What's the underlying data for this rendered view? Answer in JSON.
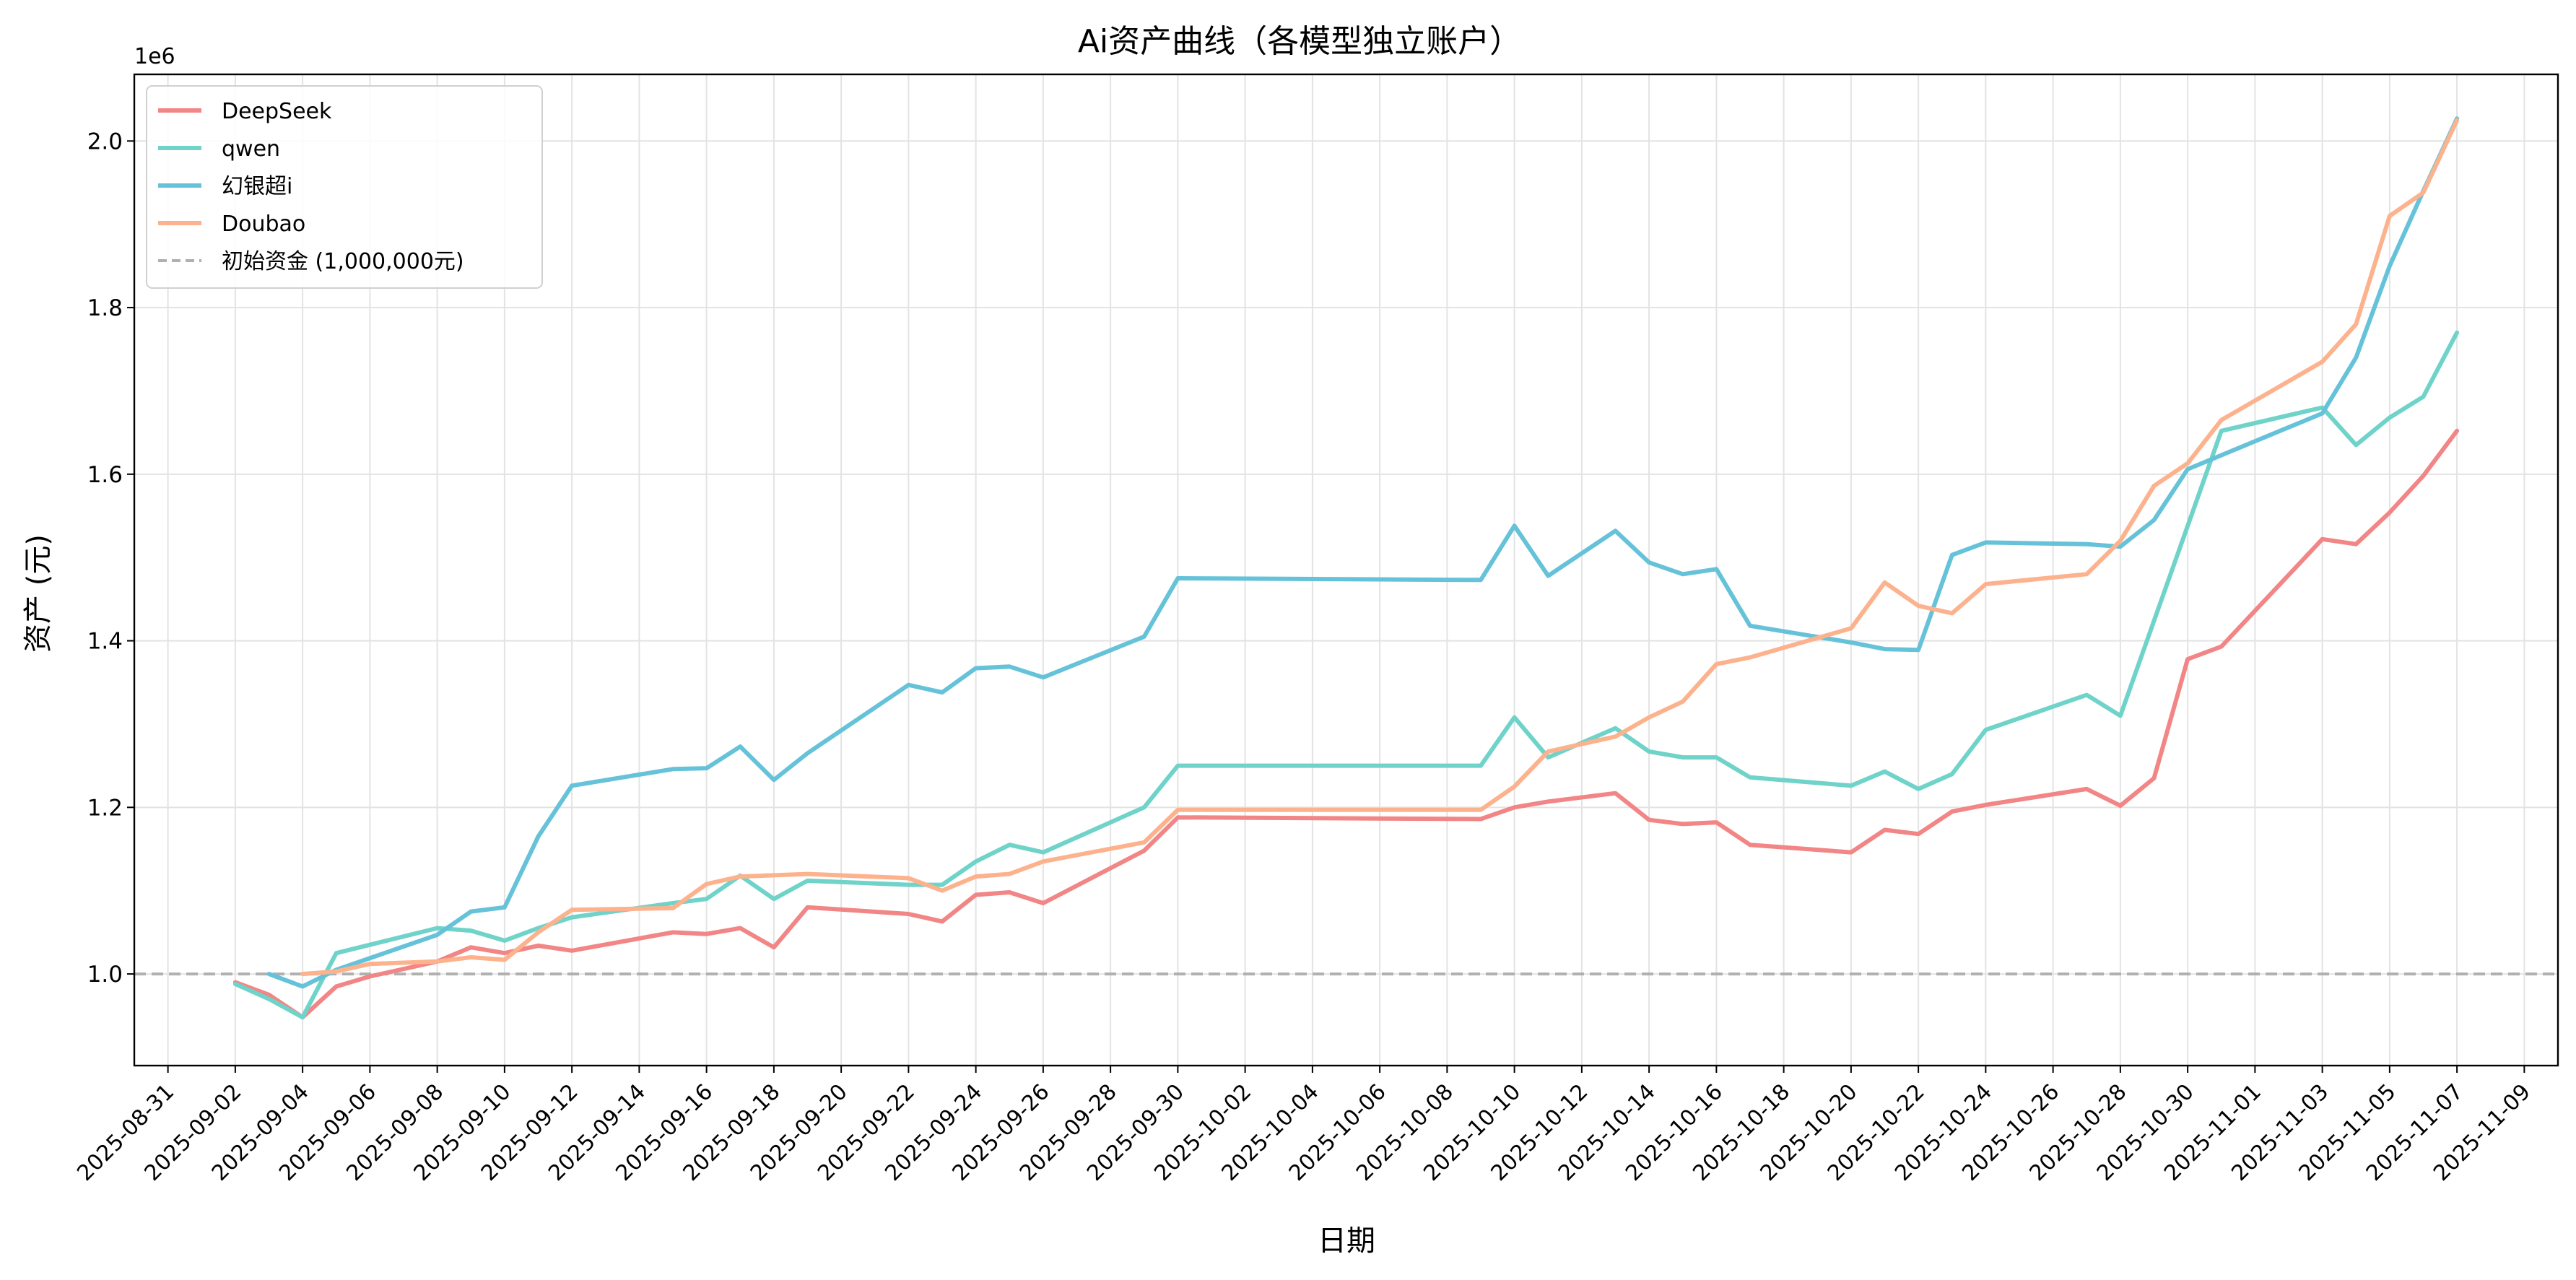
{
  "chart_data": {
    "type": "line",
    "title": "Ai资产曲线（各模型独立账户）",
    "xlabel": "日期",
    "ylabel": "资产 (元)",
    "y_offset_label": "1e6",
    "ylim": [
      0.89,
      2.08
    ],
    "yticks": [
      1.0,
      1.2,
      1.4,
      1.6,
      1.8,
      2.0
    ],
    "ytick_labels": [
      "1.0",
      "1.2",
      "1.4",
      "1.6",
      "1.8",
      "2.0"
    ],
    "xlim": [
      "2025-08-30",
      "2025-11-10"
    ],
    "xticks": [
      "2025-08-31",
      "2025-09-02",
      "2025-09-04",
      "2025-09-06",
      "2025-09-08",
      "2025-09-10",
      "2025-09-12",
      "2025-09-14",
      "2025-09-16",
      "2025-09-18",
      "2025-09-20",
      "2025-09-22",
      "2025-09-24",
      "2025-09-26",
      "2025-09-28",
      "2025-09-30",
      "2025-10-02",
      "2025-10-04",
      "2025-10-06",
      "2025-10-08",
      "2025-10-10",
      "2025-10-12",
      "2025-10-14",
      "2025-10-16",
      "2025-10-18",
      "2025-10-20",
      "2025-10-22",
      "2025-10-24",
      "2025-10-26",
      "2025-10-28",
      "2025-10-30",
      "2025-11-01",
      "2025-11-03",
      "2025-11-05",
      "2025-11-07",
      "2025-11-09"
    ],
    "grid": true,
    "legend_position": "upper-left",
    "reference_line": {
      "label": "初始资金 (1,000,000元)",
      "y": 1.0,
      "color": "#b0b0b0",
      "style": "dashed"
    },
    "series": [
      {
        "name": "DeepSeek",
        "color": "#f28585",
        "points": [
          [
            "2025-09-02",
            0.99
          ],
          [
            "2025-09-03",
            0.975
          ],
          [
            "2025-09-04",
            0.948
          ],
          [
            "2025-09-05",
            0.985
          ],
          [
            "2025-09-06",
            0.997
          ],
          [
            "2025-09-08",
            1.015
          ],
          [
            "2025-09-09",
            1.032
          ],
          [
            "2025-09-10",
            1.025
          ],
          [
            "2025-09-11",
            1.034
          ],
          [
            "2025-09-12",
            1.028
          ],
          [
            "2025-09-15",
            1.05
          ],
          [
            "2025-09-16",
            1.048
          ],
          [
            "2025-09-17",
            1.055
          ],
          [
            "2025-09-18",
            1.032
          ],
          [
            "2025-09-19",
            1.08
          ],
          [
            "2025-09-22",
            1.072
          ],
          [
            "2025-09-23",
            1.063
          ],
          [
            "2025-09-24",
            1.095
          ],
          [
            "2025-09-25",
            1.098
          ],
          [
            "2025-09-26",
            1.085
          ],
          [
            "2025-09-29",
            1.148
          ],
          [
            "2025-09-30",
            1.188
          ],
          [
            "2025-10-09",
            1.186
          ],
          [
            "2025-10-10",
            1.2
          ],
          [
            "2025-10-11",
            1.207
          ],
          [
            "2025-10-13",
            1.217
          ],
          [
            "2025-10-14",
            1.185
          ],
          [
            "2025-10-15",
            1.18
          ],
          [
            "2025-10-16",
            1.182
          ],
          [
            "2025-10-17",
            1.155
          ],
          [
            "2025-10-20",
            1.146
          ],
          [
            "2025-10-21",
            1.173
          ],
          [
            "2025-10-22",
            1.168
          ],
          [
            "2025-10-23",
            1.195
          ],
          [
            "2025-10-24",
            1.203
          ],
          [
            "2025-10-27",
            1.222
          ],
          [
            "2025-10-28",
            1.202
          ],
          [
            "2025-10-29",
            1.235
          ],
          [
            "2025-10-30",
            1.378
          ],
          [
            "2025-10-31",
            1.393
          ],
          [
            "2025-11-03",
            1.522
          ],
          [
            "2025-11-04",
            1.516
          ],
          [
            "2025-11-05",
            1.554
          ],
          [
            "2025-11-06",
            1.598
          ],
          [
            "2025-11-07",
            1.652
          ]
        ]
      },
      {
        "name": "qwen",
        "color": "#6fd3c9",
        "points": [
          [
            "2025-09-02",
            0.988
          ],
          [
            "2025-09-03",
            0.97
          ],
          [
            "2025-09-04",
            0.948
          ],
          [
            "2025-09-05",
            1.025
          ],
          [
            "2025-09-08",
            1.055
          ],
          [
            "2025-09-09",
            1.052
          ],
          [
            "2025-09-10",
            1.04
          ],
          [
            "2025-09-11",
            1.055
          ],
          [
            "2025-09-12",
            1.068
          ],
          [
            "2025-09-15",
            1.085
          ],
          [
            "2025-09-16",
            1.09
          ],
          [
            "2025-09-17",
            1.118
          ],
          [
            "2025-09-18",
            1.09
          ],
          [
            "2025-09-19",
            1.112
          ],
          [
            "2025-09-22",
            1.107
          ],
          [
            "2025-09-23",
            1.107
          ],
          [
            "2025-09-24",
            1.135
          ],
          [
            "2025-09-25",
            1.155
          ],
          [
            "2025-09-26",
            1.146
          ],
          [
            "2025-09-29",
            1.2
          ],
          [
            "2025-09-30",
            1.25
          ],
          [
            "2025-10-09",
            1.25
          ],
          [
            "2025-10-10",
            1.308
          ],
          [
            "2025-10-11",
            1.26
          ],
          [
            "2025-10-13",
            1.295
          ],
          [
            "2025-10-14",
            1.267
          ],
          [
            "2025-10-15",
            1.26
          ],
          [
            "2025-10-16",
            1.26
          ],
          [
            "2025-10-17",
            1.236
          ],
          [
            "2025-10-20",
            1.226
          ],
          [
            "2025-10-21",
            1.243
          ],
          [
            "2025-10-22",
            1.222
          ],
          [
            "2025-10-23",
            1.24
          ],
          [
            "2025-10-24",
            1.293
          ],
          [
            "2025-10-27",
            1.335
          ],
          [
            "2025-10-28",
            1.31
          ],
          [
            "2025-10-31",
            1.652
          ],
          [
            "2025-11-03",
            1.68
          ],
          [
            "2025-11-04",
            1.635
          ],
          [
            "2025-11-05",
            1.668
          ],
          [
            "2025-11-06",
            1.693
          ],
          [
            "2025-11-07",
            1.77
          ]
        ]
      },
      {
        "name": "幻银超i",
        "color": "#66c2d9",
        "points": [
          [
            "2025-09-03",
            1.0
          ],
          [
            "2025-09-04",
            0.985
          ],
          [
            "2025-09-05",
            1.005
          ],
          [
            "2025-09-08",
            1.047
          ],
          [
            "2025-09-09",
            1.075
          ],
          [
            "2025-09-10",
            1.08
          ],
          [
            "2025-09-11",
            1.165
          ],
          [
            "2025-09-12",
            1.226
          ],
          [
            "2025-09-15",
            1.246
          ],
          [
            "2025-09-16",
            1.247
          ],
          [
            "2025-09-17",
            1.273
          ],
          [
            "2025-09-18",
            1.233
          ],
          [
            "2025-09-19",
            1.265
          ],
          [
            "2025-09-22",
            1.347
          ],
          [
            "2025-09-23",
            1.338
          ],
          [
            "2025-09-24",
            1.367
          ],
          [
            "2025-09-25",
            1.369
          ],
          [
            "2025-09-26",
            1.356
          ],
          [
            "2025-09-29",
            1.405
          ],
          [
            "2025-09-30",
            1.475
          ],
          [
            "2025-10-09",
            1.473
          ],
          [
            "2025-10-10",
            1.538
          ],
          [
            "2025-10-11",
            1.478
          ],
          [
            "2025-10-13",
            1.532
          ],
          [
            "2025-10-14",
            1.494
          ],
          [
            "2025-10-15",
            1.48
          ],
          [
            "2025-10-16",
            1.486
          ],
          [
            "2025-10-17",
            1.418
          ],
          [
            "2025-10-20",
            1.398
          ],
          [
            "2025-10-21",
            1.39
          ],
          [
            "2025-10-22",
            1.389
          ],
          [
            "2025-10-23",
            1.503
          ],
          [
            "2025-10-24",
            1.518
          ],
          [
            "2025-10-27",
            1.516
          ],
          [
            "2025-10-28",
            1.513
          ],
          [
            "2025-10-29",
            1.545
          ],
          [
            "2025-10-30",
            1.606
          ],
          [
            "2025-11-03",
            1.673
          ],
          [
            "2025-11-04",
            1.74
          ],
          [
            "2025-11-05",
            1.85
          ],
          [
            "2025-11-06",
            1.94
          ],
          [
            "2025-11-07",
            2.027
          ]
        ]
      },
      {
        "name": "Doubao",
        "color": "#fdb28e",
        "points": [
          [
            "2025-09-04",
            1.0
          ],
          [
            "2025-09-05",
            1.003
          ],
          [
            "2025-09-06",
            1.012
          ],
          [
            "2025-09-08",
            1.015
          ],
          [
            "2025-09-09",
            1.02
          ],
          [
            "2025-09-10",
            1.017
          ],
          [
            "2025-09-11",
            1.05
          ],
          [
            "2025-09-12",
            1.077
          ],
          [
            "2025-09-15",
            1.079
          ],
          [
            "2025-09-16",
            1.108
          ],
          [
            "2025-09-17",
            1.117
          ],
          [
            "2025-09-19",
            1.12
          ],
          [
            "2025-09-22",
            1.115
          ],
          [
            "2025-09-23",
            1.1
          ],
          [
            "2025-09-24",
            1.117
          ],
          [
            "2025-09-25",
            1.12
          ],
          [
            "2025-09-26",
            1.135
          ],
          [
            "2025-09-29",
            1.158
          ],
          [
            "2025-09-30",
            1.197
          ],
          [
            "2025-10-09",
            1.197
          ],
          [
            "2025-10-10",
            1.225
          ],
          [
            "2025-10-11",
            1.267
          ],
          [
            "2025-10-13",
            1.285
          ],
          [
            "2025-10-14",
            1.308
          ],
          [
            "2025-10-15",
            1.327
          ],
          [
            "2025-10-16",
            1.372
          ],
          [
            "2025-10-17",
            1.38
          ],
          [
            "2025-10-20",
            1.415
          ],
          [
            "2025-10-21",
            1.47
          ],
          [
            "2025-10-22",
            1.442
          ],
          [
            "2025-10-23",
            1.433
          ],
          [
            "2025-10-24",
            1.468
          ],
          [
            "2025-10-27",
            1.48
          ],
          [
            "2025-10-28",
            1.52
          ],
          [
            "2025-10-29",
            1.586
          ],
          [
            "2025-10-30",
            1.613
          ],
          [
            "2025-10-31",
            1.665
          ],
          [
            "2025-11-03",
            1.735
          ],
          [
            "2025-11-04",
            1.78
          ],
          [
            "2025-11-05",
            1.91
          ],
          [
            "2025-11-06",
            1.938
          ],
          [
            "2025-11-07",
            2.025
          ]
        ]
      }
    ]
  }
}
